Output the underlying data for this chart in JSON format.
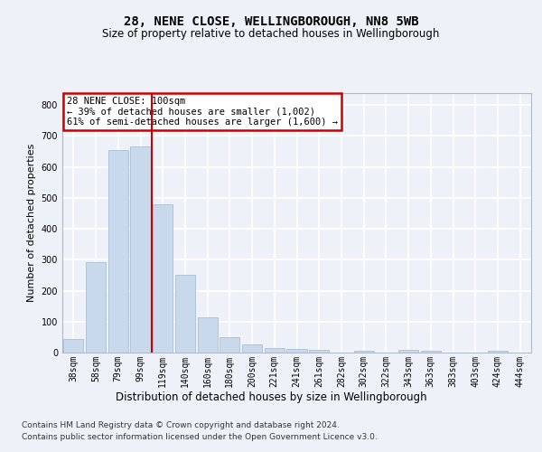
{
  "title": "28, NENE CLOSE, WELLINGBOROUGH, NN8 5WB",
  "subtitle": "Size of property relative to detached houses in Wellingborough",
  "xlabel": "Distribution of detached houses by size in Wellingborough",
  "ylabel": "Number of detached properties",
  "categories": [
    "38sqm",
    "58sqm",
    "79sqm",
    "99sqm",
    "119sqm",
    "140sqm",
    "160sqm",
    "180sqm",
    "200sqm",
    "221sqm",
    "241sqm",
    "261sqm",
    "282sqm",
    "302sqm",
    "322sqm",
    "343sqm",
    "363sqm",
    "383sqm",
    "403sqm",
    "424sqm",
    "444sqm"
  ],
  "values": [
    45,
    293,
    655,
    665,
    478,
    250,
    113,
    50,
    25,
    14,
    13,
    8,
    0,
    7,
    0,
    8,
    5,
    0,
    0,
    7,
    0
  ],
  "bar_color": "#c9d9ec",
  "bar_edge_color": "#a0b8d0",
  "red_line_index": 3,
  "annotation_text": "28 NENE CLOSE: 100sqm\n← 39% of detached houses are smaller (1,002)\n61% of semi-detached houses are larger (1,600) →",
  "annotation_box_color": "#ffffff",
  "annotation_box_edge": "#cc0000",
  "red_line_color": "#cc0000",
  "ylim": [
    0,
    840
  ],
  "yticks": [
    0,
    100,
    200,
    300,
    400,
    500,
    600,
    700,
    800
  ],
  "footer_line1": "Contains HM Land Registry data © Crown copyright and database right 2024.",
  "footer_line2": "Contains public sector information licensed under the Open Government Licence v3.0.",
  "bg_color": "#eef2f8",
  "plot_bg_color": "#eef2f8",
  "grid_color": "#ffffff",
  "title_fontsize": 10,
  "subtitle_fontsize": 8.5,
  "axis_label_fontsize": 8.5,
  "tick_fontsize": 7,
  "footer_fontsize": 6.5,
  "ylabel_fontsize": 8
}
